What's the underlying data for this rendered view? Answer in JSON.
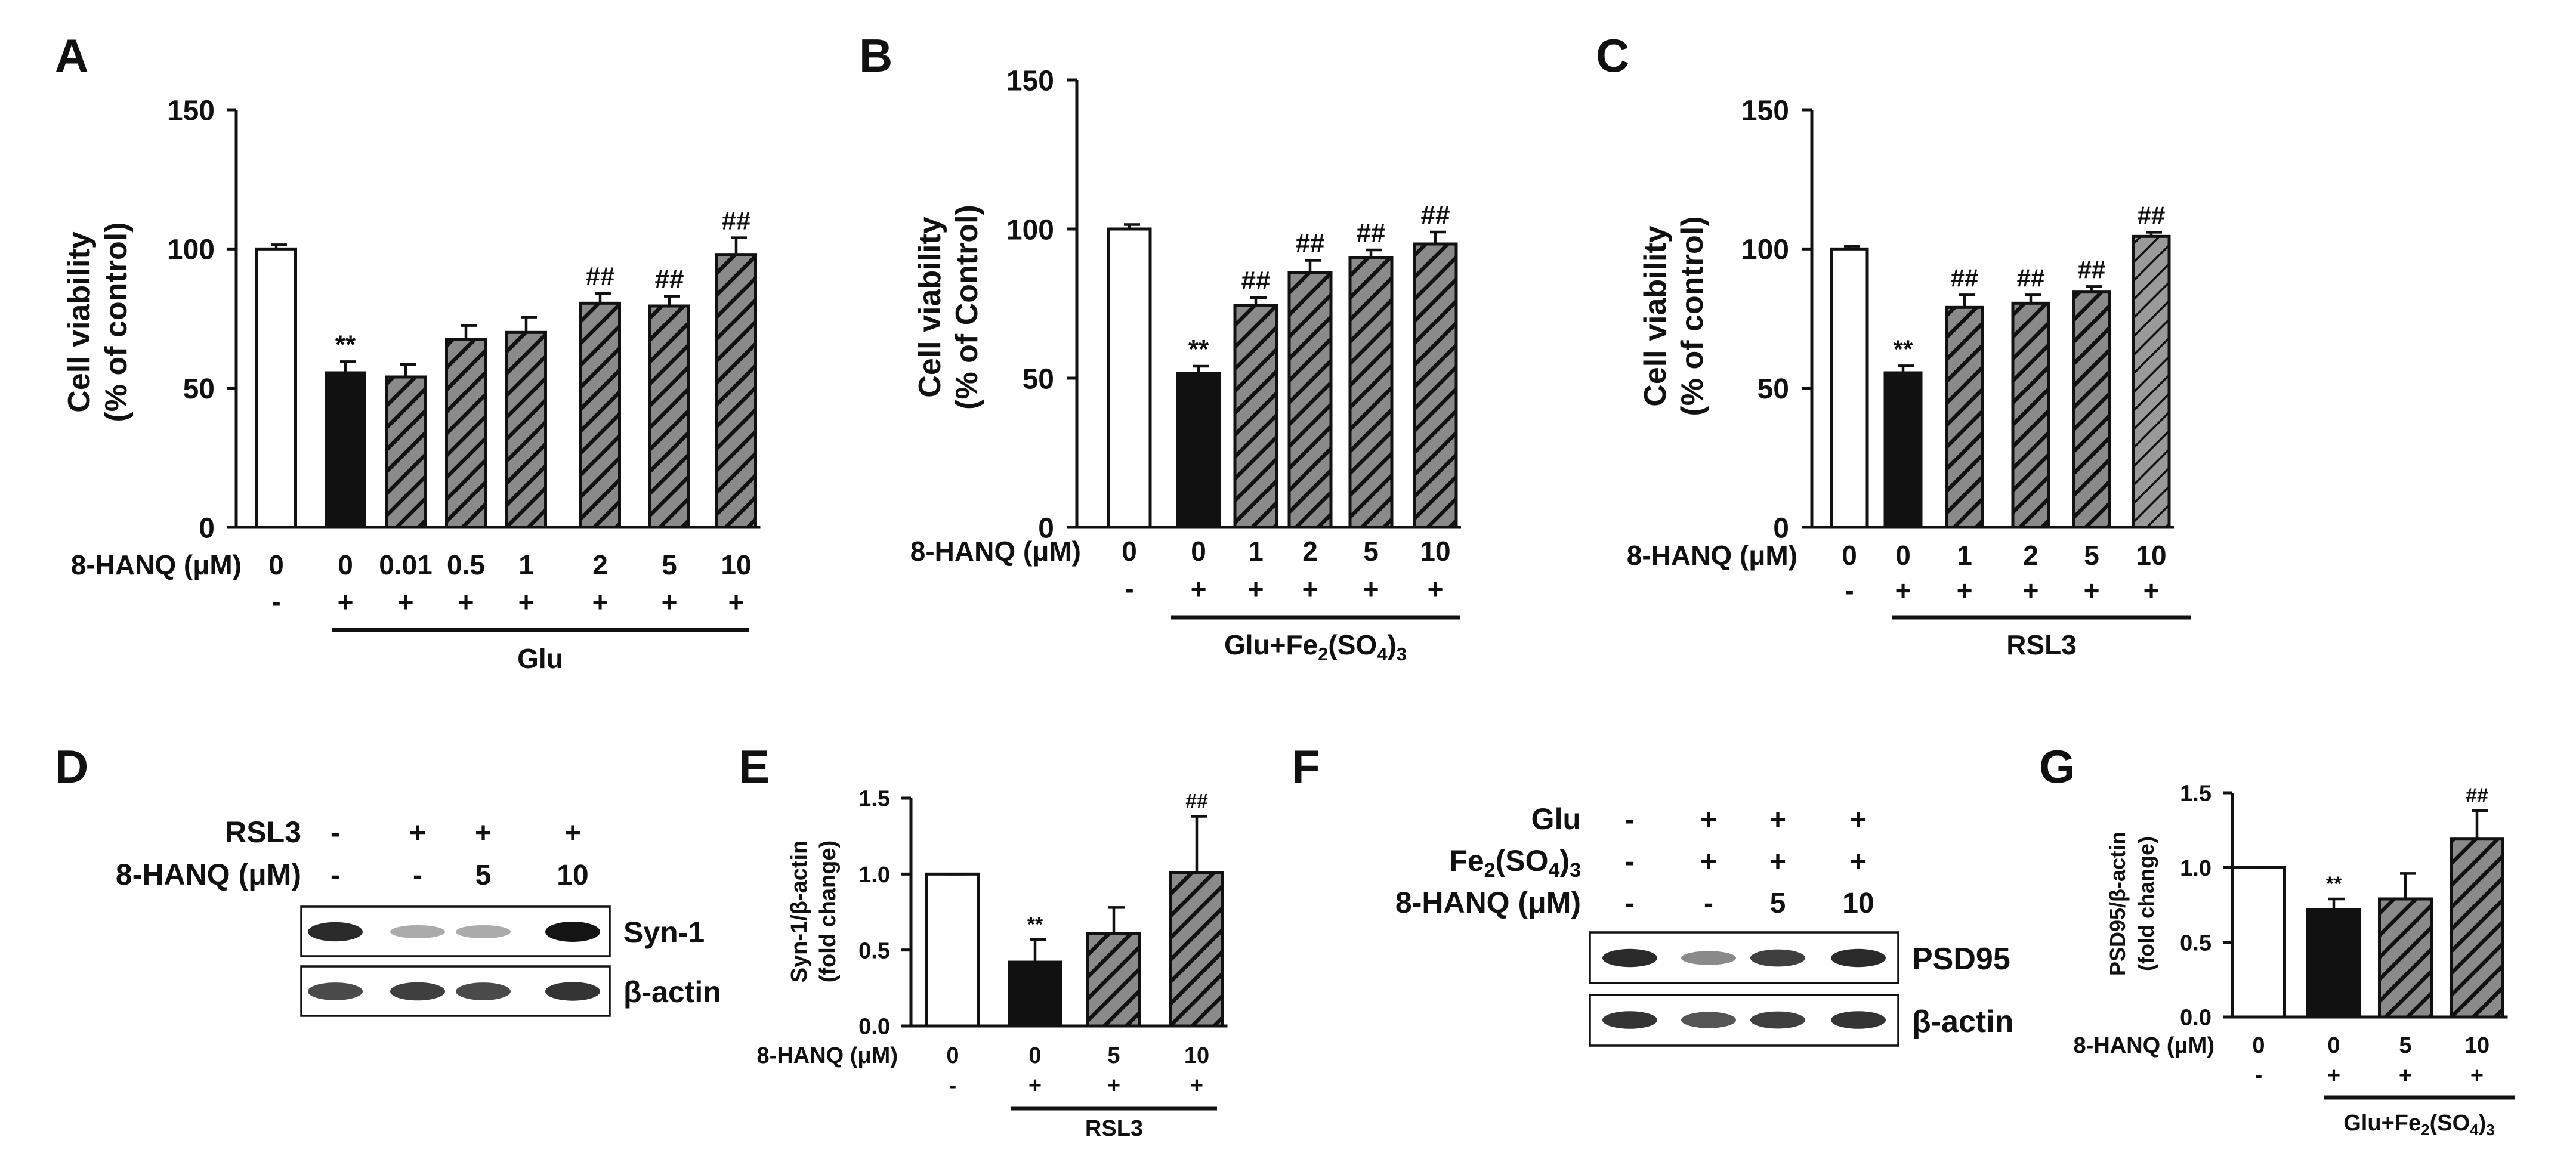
{
  "colors": {
    "axis": "#111111",
    "hatch_bg": "#8a8a8a",
    "control": "#ffffff",
    "model": "#111111"
  },
  "chart_data": [
    {
      "panel": "A",
      "type": "bar",
      "ylabel": [
        "Cell viability",
        "(% of control)"
      ],
      "ylim": [
        0,
        150
      ],
      "yticks": [
        "0",
        "50",
        "100",
        "150"
      ],
      "ytick_values": [
        0,
        50,
        100,
        150
      ],
      "row1_label": "8-HANQ (μM)",
      "categories": [
        "0",
        "0",
        "0.01",
        "0.5",
        "1",
        "2",
        "5",
        "10"
      ],
      "row2": [
        "-",
        "+",
        "+",
        "+",
        "+",
        "+",
        "+",
        "+"
      ],
      "treatment": "Glu",
      "values": [
        100,
        55.5,
        54,
        67.5,
        70,
        80.5,
        79.5,
        98
      ],
      "errors": [
        1.5,
        4,
        4.5,
        5,
        5.5,
        3.5,
        3.5,
        6
      ],
      "styles": [
        "white",
        "black",
        "hatch",
        "hatch",
        "hatch",
        "hatch",
        "hatch",
        "hatch"
      ],
      "annotations": [
        "",
        "**",
        "",
        "",
        "",
        "##",
        "##",
        "##"
      ]
    },
    {
      "panel": "B",
      "type": "bar",
      "ylabel": [
        "Cell viability",
        "(% of Control)"
      ],
      "ylim": [
        0,
        150
      ],
      "yticks": [
        "0",
        "50",
        "100",
        "150"
      ],
      "ytick_values": [
        0,
        50,
        100,
        150
      ],
      "row1_label": "8-HANQ (μM)",
      "categories": [
        "0",
        "0",
        "1",
        "2",
        "5",
        "10"
      ],
      "row2": [
        "-",
        "+",
        "+",
        "+",
        "+",
        "+"
      ],
      "treatment": "Glu+Fe2(SO4)3",
      "values": [
        100,
        51.5,
        74.5,
        85.5,
        90.5,
        95
      ],
      "errors": [
        1.5,
        2.5,
        2.5,
        4,
        2.5,
        4
      ],
      "styles": [
        "white",
        "black",
        "hatch",
        "hatch",
        "hatch",
        "hatch"
      ],
      "annotations": [
        "",
        "**",
        "##",
        "##",
        "##",
        "##"
      ]
    },
    {
      "panel": "C",
      "type": "bar",
      "ylabel": [
        "Cell viability",
        "(% of control)"
      ],
      "ylim": [
        0,
        150
      ],
      "yticks": [
        "0",
        "50",
        "100",
        "150"
      ],
      "ytick_values": [
        0,
        50,
        100,
        150
      ],
      "row1_label": "8-HANQ (μM)",
      "categories": [
        "0",
        "0",
        "1",
        "2",
        "5",
        "10"
      ],
      "row2": [
        "-",
        "+",
        "+",
        "+",
        "+",
        "+"
      ],
      "treatment": "RSL3",
      "values": [
        100,
        55.5,
        79,
        80.5,
        84.5,
        104.5
      ],
      "errors": [
        1,
        2.5,
        4.5,
        3,
        2,
        1.5
      ],
      "styles": [
        "white",
        "black",
        "hatch",
        "hatch",
        "hatch",
        "hatch2"
      ],
      "annotations": [
        "",
        "**",
        "##",
        "##",
        "##",
        "##"
      ]
    },
    {
      "panel": "E",
      "type": "bar",
      "ylabel": [
        "Syn-1/β-actin",
        "(fold change)"
      ],
      "ylim": [
        0,
        1.5
      ],
      "yticks": [
        "0.0",
        "0.5",
        "1.0",
        "1.5"
      ],
      "ytick_values": [
        0,
        0.5,
        1.0,
        1.5
      ],
      "row1_label": "8-HANQ (μM)",
      "categories": [
        "0",
        "0",
        "5",
        "10"
      ],
      "row2": [
        "-",
        "+",
        "+",
        "+"
      ],
      "treatment": "RSL3",
      "values": [
        1.0,
        0.42,
        0.61,
        1.01
      ],
      "errors": [
        0,
        0.15,
        0.17,
        0.37
      ],
      "styles": [
        "white",
        "black",
        "hatch",
        "hatch"
      ],
      "annotations": [
        "",
        "**",
        "",
        "##"
      ]
    },
    {
      "panel": "G",
      "type": "bar",
      "ylabel": [
        "PSD95/β-actin",
        "(fold change)"
      ],
      "ylim": [
        0,
        1.5
      ],
      "yticks": [
        "0.0",
        "0.5",
        "1.0",
        "1.5"
      ],
      "ytick_values": [
        0,
        0.5,
        1.0,
        1.5
      ],
      "row1_label": "8-HANQ (μM)",
      "categories": [
        "0",
        "0",
        "5",
        "10"
      ],
      "row2": [
        "-",
        "+",
        "+",
        "+"
      ],
      "treatment": "Glu+Fe2(SO4)3",
      "values": [
        1.0,
        0.72,
        0.79,
        1.19
      ],
      "errors": [
        0,
        0.07,
        0.17,
        0.19
      ],
      "styles": [
        "white",
        "black",
        "hatch",
        "hatch"
      ],
      "annotations": [
        "",
        "**",
        "",
        "##"
      ]
    }
  ],
  "blot_D": {
    "panel": "D",
    "row_labels": [
      "RSL3",
      "8-HANQ (μM)"
    ],
    "rows": [
      [
        "-",
        "+",
        "+",
        "+"
      ],
      [
        "-",
        "-",
        "5",
        "10"
      ]
    ],
    "bands": [
      "Syn-1",
      "β-actin"
    ],
    "intensity": [
      [
        0.9,
        0.3,
        0.3,
        1.0
      ],
      [
        0.75,
        0.8,
        0.75,
        0.85
      ]
    ]
  },
  "blot_F": {
    "panel": "F",
    "row_labels": [
      "Glu",
      "Fe2(SO4)3",
      "8-HANQ (μM)"
    ],
    "rows": [
      [
        "-",
        "+",
        "+",
        "+"
      ],
      [
        "-",
        "+",
        "+",
        "+"
      ],
      [
        "-",
        "-",
        "5",
        "10"
      ]
    ],
    "bands": [
      "PSD95",
      "β-actin"
    ],
    "intensity": [
      [
        0.9,
        0.45,
        0.8,
        0.9
      ],
      [
        0.85,
        0.7,
        0.8,
        0.85
      ]
    ]
  }
}
